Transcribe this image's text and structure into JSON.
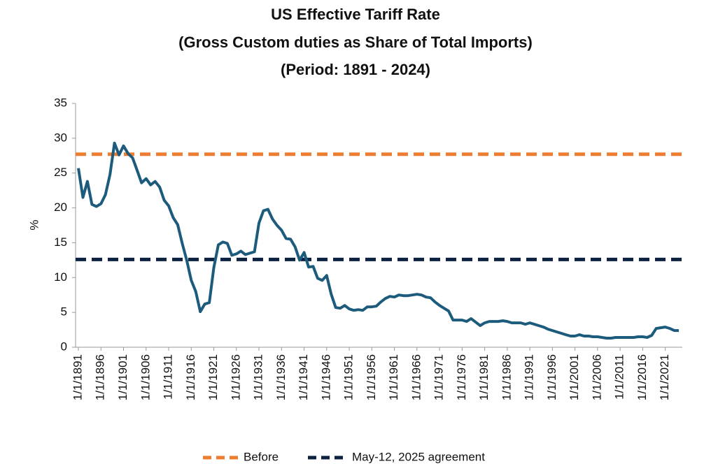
{
  "chart_data": {
    "type": "line",
    "title": "US Effective Tariff Rate",
    "subtitle": [
      "(Gross Custom duties as Share of Total Imports)",
      "(Period: 1891 - 2024)"
    ],
    "y_label": "%",
    "categories": [
      "1/1/1891",
      null,
      null,
      null,
      null,
      "1/1/1896",
      null,
      null,
      null,
      null,
      "1/1/1901",
      null,
      null,
      null,
      null,
      "1/1/1906",
      null,
      null,
      null,
      null,
      "1/1/1911",
      null,
      null,
      null,
      null,
      "1/1/1916",
      null,
      null,
      null,
      null,
      "1/1/1921",
      null,
      null,
      null,
      null,
      "1/1/1926",
      null,
      null,
      null,
      null,
      "1/1/1931",
      null,
      null,
      null,
      null,
      "1/1/1936",
      null,
      null,
      null,
      null,
      "1/1/1941",
      null,
      null,
      null,
      null,
      "1/1/1946",
      null,
      null,
      null,
      null,
      "1/1/1951",
      null,
      null,
      null,
      null,
      "1/1/1956",
      null,
      null,
      null,
      null,
      "1/1/1961",
      null,
      null,
      null,
      null,
      "1/1/1966",
      null,
      null,
      null,
      null,
      "1/1/1971",
      null,
      null,
      null,
      null,
      "1/1/1976",
      null,
      null,
      null,
      null,
      "1/1/1981",
      null,
      null,
      null,
      null,
      "1/1/1986",
      null,
      null,
      null,
      null,
      "1/1/1991",
      null,
      null,
      null,
      null,
      "1/1/1996",
      null,
      null,
      null,
      null,
      "1/1/2001",
      null,
      null,
      null,
      null,
      "1/1/2006",
      null,
      null,
      null,
      null,
      "1/1/2011",
      null,
      null,
      null,
      null,
      "1/1/2016",
      null,
      null,
      null,
      null,
      "1/1/2021",
      null,
      null,
      null
    ],
    "series": [
      {
        "color": "#1d5b7d",
        "values": [
          25.7,
          21.5,
          23.8,
          20.5,
          20.2,
          20.6,
          21.9,
          24.8,
          29.3,
          27.6,
          28.9,
          27.8,
          27.2,
          25.4,
          23.6,
          24.2,
          23.3,
          23.8,
          23.0,
          21.1,
          20.3,
          18.6,
          17.6,
          14.9,
          12.5,
          9.6,
          8.0,
          5.1,
          6.2,
          6.4,
          11.4,
          14.7,
          15.1,
          14.9,
          13.2,
          13.4,
          13.8,
          13.3,
          13.5,
          13.7,
          17.8,
          19.6,
          19.8,
          18.4,
          17.5,
          16.8,
          15.6,
          15.5,
          14.4,
          12.5,
          13.6,
          11.5,
          11.6,
          9.9,
          9.6,
          10.3,
          7.6,
          5.7,
          5.6,
          6.0,
          5.5,
          5.3,
          5.4,
          5.3,
          5.8,
          5.8,
          5.9,
          6.5,
          7.0,
          7.3,
          7.2,
          7.5,
          7.4,
          7.4,
          7.5,
          7.6,
          7.5,
          7.2,
          7.1,
          6.5,
          6.0,
          5.6,
          5.2,
          3.9,
          3.9,
          3.9,
          3.7,
          4.1,
          3.6,
          3.1,
          3.5,
          3.7,
          3.7,
          3.7,
          3.8,
          3.7,
          3.5,
          3.5,
          3.5,
          3.3,
          3.5,
          3.3,
          3.1,
          2.9,
          2.6,
          2.4,
          2.2,
          2.0,
          1.8,
          1.6,
          1.6,
          1.8,
          1.6,
          1.6,
          1.5,
          1.5,
          1.4,
          1.3,
          1.3,
          1.4,
          1.4,
          1.4,
          1.4,
          1.4,
          1.5,
          1.5,
          1.4,
          1.7,
          2.7,
          2.8,
          2.9,
          2.7,
          2.4,
          2.4
        ]
      }
    ],
    "reference_lines": [
      {
        "name": "Before",
        "value": 27.7,
        "color": "#ed7d31"
      },
      {
        "name": "May-12, 2025 agreement",
        "value": 12.6,
        "color": "#0d2240"
      }
    ],
    "ylim": [
      0,
      35
    ],
    "yticks": [
      0,
      5,
      10,
      15,
      20,
      25,
      30,
      35
    ],
    "grid": false
  }
}
